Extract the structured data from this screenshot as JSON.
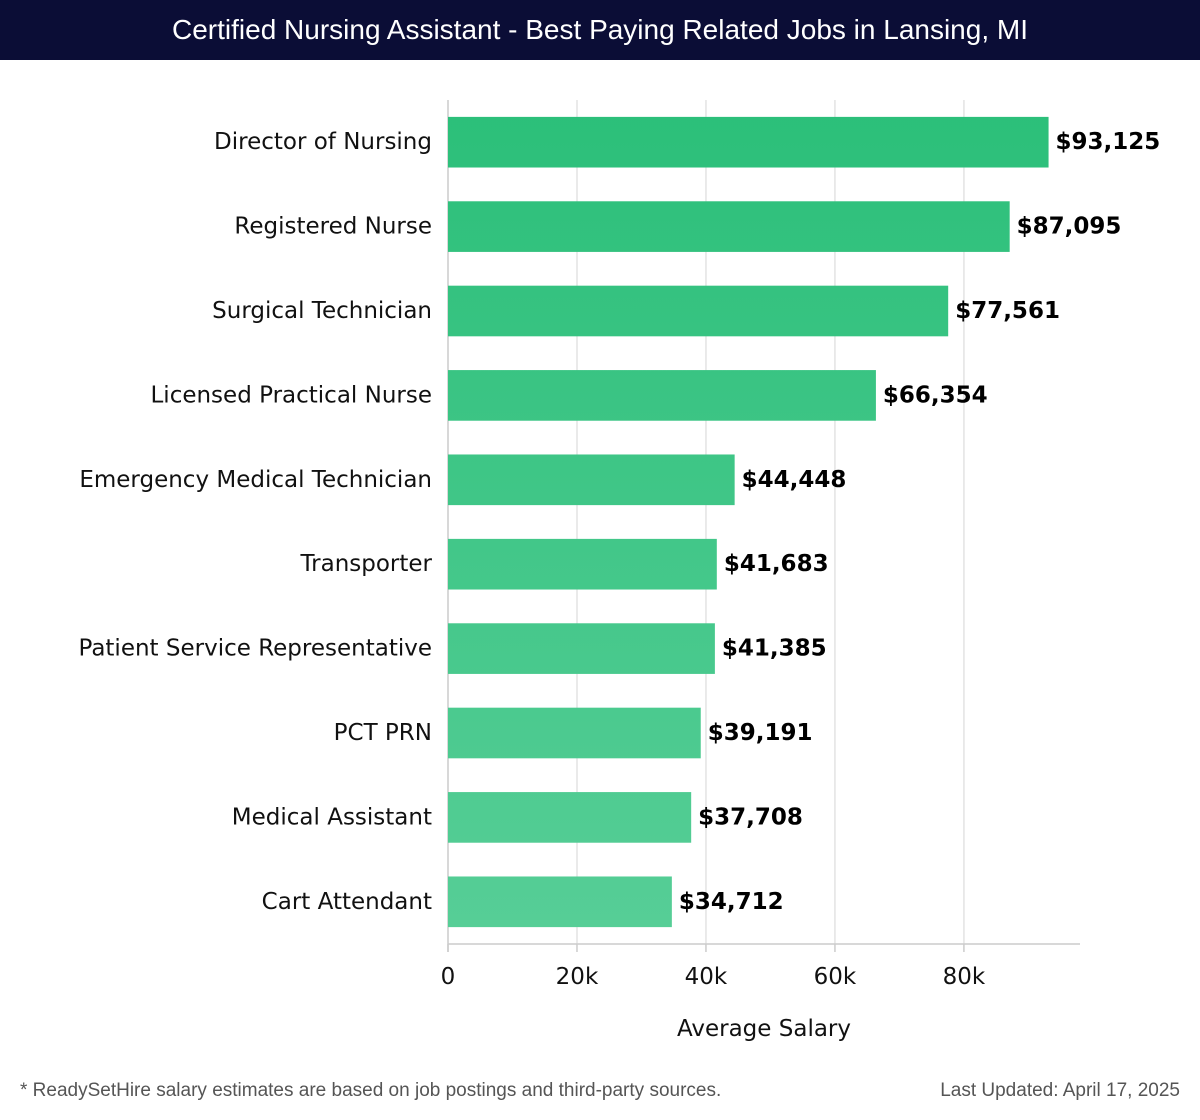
{
  "header": {
    "title": "Certified Nursing Assistant - Best Paying Related Jobs in Lansing, MI"
  },
  "footer": {
    "note": "* ReadySetHire salary estimates are based on job postings and third-party sources.",
    "updated": "Last Updated: April 17, 2025"
  },
  "colors": {
    "title_bg": "#0b0d36",
    "bar_top": "#2bbf79",
    "bar_bottom": "#57ce97",
    "grid": "#e3e3e3",
    "axis": "#cccccc"
  },
  "chart_data": {
    "type": "bar",
    "orientation": "horizontal",
    "title": "Certified Nursing Assistant - Best Paying Related Jobs in Lansing, MI",
    "xlabel": "Average Salary",
    "ylabel": "",
    "xlim": [
      0,
      98000
    ],
    "xticks": [
      0,
      20000,
      40000,
      60000,
      80000
    ],
    "xtick_labels": [
      "0",
      "20k",
      "40k",
      "60k",
      "80k"
    ],
    "grid": true,
    "categories": [
      "Director of Nursing",
      "Registered Nurse",
      "Surgical Technician",
      "Licensed Practical Nurse",
      "Emergency Medical Technician",
      "Transporter",
      "Patient Service Representative",
      "PCT PRN",
      "Medical Assistant",
      "Cart Attendant"
    ],
    "values": [
      93125,
      87095,
      77561,
      66354,
      44448,
      41683,
      41385,
      39191,
      37708,
      34712
    ],
    "value_labels": [
      "$93,125",
      "$87,095",
      "$77,561",
      "$66,354",
      "$44,448",
      "$41,683",
      "$41,385",
      "$39,191",
      "$37,708",
      "$34,712"
    ]
  }
}
